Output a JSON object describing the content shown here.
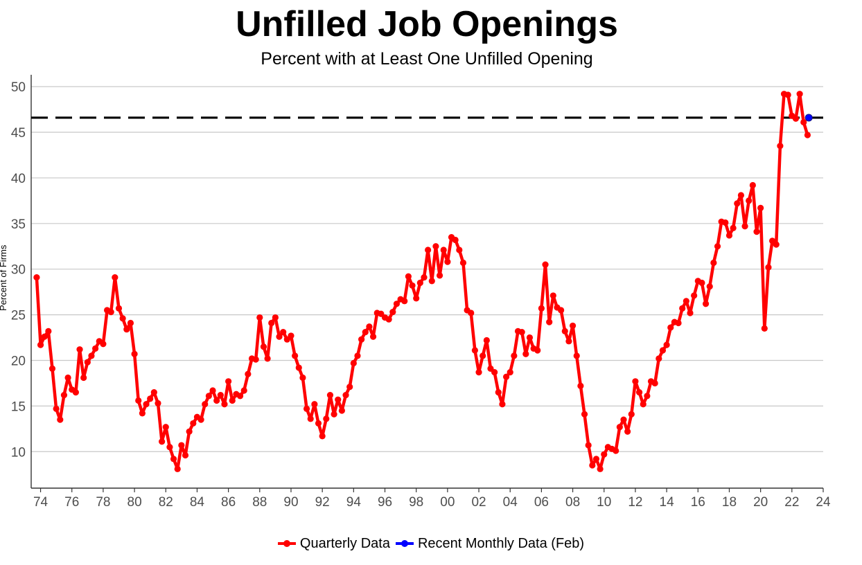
{
  "chart_data": {
    "type": "line",
    "title": "Unfilled Job Openings",
    "subtitle": "Percent with at Least One Unfilled Opening",
    "xlabel": "",
    "ylabel": "Percent of Firms",
    "xlim": [
      1973.4,
      2024.0
    ],
    "ylim": [
      6.0,
      51.3
    ],
    "x_tick_values": [
      1974,
      1976,
      1978,
      1980,
      1982,
      1984,
      1986,
      1988,
      1990,
      1992,
      1994,
      1996,
      1998,
      2000,
      2002,
      2004,
      2006,
      2008,
      2010,
      2012,
      2014,
      2016,
      2018,
      2020,
      2022,
      2024
    ],
    "x_tick_labels": [
      "74",
      "76",
      "78",
      "80",
      "82",
      "84",
      "86",
      "88",
      "90",
      "92",
      "94",
      "96",
      "98",
      "00",
      "02",
      "04",
      "06",
      "08",
      "10",
      "12",
      "14",
      "16",
      "18",
      "20",
      "22",
      "24"
    ],
    "y_ticks": [
      10,
      15,
      20,
      25,
      30,
      35,
      40,
      45,
      50
    ],
    "grid": "horizontal",
    "legend_position": "bottom",
    "reference_line": {
      "y": 46.6,
      "style": "dashed",
      "color": "#000000"
    },
    "series": [
      {
        "name": "Quarterly Data",
        "color": "#ff0000",
        "x": [
          1973.75,
          1974.0,
          1974.25,
          1974.5,
          1974.75,
          1975.0,
          1975.25,
          1975.5,
          1975.75,
          1976.0,
          1976.25,
          1976.5,
          1976.75,
          1977.0,
          1977.25,
          1977.5,
          1977.75,
          1978.0,
          1978.25,
          1978.5,
          1978.75,
          1979.0,
          1979.25,
          1979.5,
          1979.75,
          1980.0,
          1980.25,
          1980.5,
          1980.75,
          1981.0,
          1981.25,
          1981.5,
          1981.75,
          1982.0,
          1982.25,
          1982.5,
          1982.75,
          1983.0,
          1983.25,
          1983.5,
          1983.75,
          1984.0,
          1984.25,
          1984.5,
          1984.75,
          1985.0,
          1985.25,
          1985.5,
          1985.75,
          1986.0,
          1986.25,
          1986.5,
          1986.75,
          1987.0,
          1987.25,
          1987.5,
          1987.75,
          1988.0,
          1988.25,
          1988.5,
          1988.75,
          1989.0,
          1989.25,
          1989.5,
          1989.75,
          1990.0,
          1990.25,
          1990.5,
          1990.75,
          1991.0,
          1991.25,
          1991.5,
          1991.75,
          1992.0,
          1992.25,
          1992.5,
          1992.75,
          1993.0,
          1993.25,
          1993.5,
          1993.75,
          1994.0,
          1994.25,
          1994.5,
          1994.75,
          1995.0,
          1995.25,
          1995.5,
          1995.75,
          1996.0,
          1996.25,
          1996.5,
          1996.75,
          1997.0,
          1997.25,
          1997.5,
          1997.75,
          1998.0,
          1998.25,
          1998.5,
          1998.75,
          1999.0,
          1999.25,
          1999.5,
          1999.75,
          2000.0,
          2000.25,
          2000.5,
          2000.75,
          2001.0,
          2001.25,
          2001.5,
          2001.75,
          2002.0,
          2002.25,
          2002.5,
          2002.75,
          2003.0,
          2003.25,
          2003.5,
          2003.75,
          2004.0,
          2004.25,
          2004.5,
          2004.75,
          2005.0,
          2005.25,
          2005.5,
          2005.75,
          2006.0,
          2006.25,
          2006.5,
          2006.75,
          2007.0,
          2007.25,
          2007.5,
          2007.75,
          2008.0,
          2008.25,
          2008.5,
          2008.75,
          2009.0,
          2009.25,
          2009.5,
          2009.75,
          2010.0,
          2010.25,
          2010.5,
          2010.75,
          2011.0,
          2011.25,
          2011.5,
          2011.75,
          2012.0,
          2012.25,
          2012.5,
          2012.75,
          2013.0,
          2013.25,
          2013.5,
          2013.75,
          2014.0,
          2014.25,
          2014.5,
          2014.75,
          2015.0,
          2015.25,
          2015.5,
          2015.75,
          2016.0,
          2016.25,
          2016.5,
          2016.75,
          2017.0,
          2017.25,
          2017.5,
          2017.75,
          2018.0,
          2018.25,
          2018.5,
          2018.75,
          2019.0,
          2019.25,
          2019.5,
          2019.75,
          2020.0,
          2020.25,
          2020.5,
          2020.75,
          2021.0,
          2021.25,
          2021.5,
          2021.75,
          2022.0,
          2022.25,
          2022.5,
          2022.75,
          2023.0
        ],
        "values": [
          29.1,
          21.7,
          22.6,
          23.2,
          19.1,
          14.7,
          13.5,
          16.2,
          18.1,
          16.8,
          16.5,
          21.2,
          18.1,
          19.8,
          20.5,
          21.3,
          22.1,
          21.8,
          25.5,
          25.3,
          29.1,
          25.7,
          24.6,
          23.4,
          24.1,
          20.7,
          15.6,
          14.2,
          15.2,
          15.8,
          16.5,
          15.3,
          11.1,
          12.7,
          10.5,
          9.2,
          8.1,
          10.7,
          9.6,
          12.2,
          13.1,
          13.8,
          13.5,
          15.2,
          16.1,
          16.7,
          15.6,
          16.2,
          15.2,
          17.7,
          15.6,
          16.3,
          16.1,
          16.7,
          18.5,
          20.2,
          20.1,
          24.7,
          21.5,
          20.2,
          24.1,
          24.7,
          22.6,
          23.1,
          22.3,
          22.7,
          20.5,
          19.2,
          18.1,
          14.7,
          13.6,
          15.2,
          13.1,
          11.7,
          13.6,
          16.2,
          14.1,
          15.7,
          14.5,
          16.2,
          17.1,
          19.7,
          20.5,
          22.3,
          23.1,
          23.7,
          22.6,
          25.2,
          25.1,
          24.7,
          24.5,
          25.3,
          26.2,
          26.7,
          26.5,
          29.2,
          28.2,
          26.8,
          28.5,
          29.1,
          32.1,
          28.7,
          32.5,
          29.3,
          32.1,
          30.8,
          33.5,
          33.2,
          32.1,
          30.7,
          25.5,
          25.2,
          21.1,
          18.7,
          20.5,
          22.2,
          19.1,
          18.7,
          16.5,
          15.2,
          18.2,
          18.7,
          20.5,
          23.2,
          23.1,
          20.7,
          22.5,
          21.3,
          21.1,
          25.7,
          30.5,
          24.2,
          27.1,
          25.8,
          25.5,
          23.2,
          22.1,
          23.8,
          20.5,
          17.2,
          14.1,
          10.7,
          8.5,
          9.2,
          8.1,
          9.7,
          10.5,
          10.3,
          10.1,
          12.7,
          13.5,
          12.2,
          14.1,
          17.7,
          16.5,
          15.2,
          16.1,
          17.7,
          17.5,
          20.2,
          21.1,
          21.7,
          23.6,
          24.2,
          24.1,
          25.7,
          26.5,
          25.2,
          27.1,
          28.7,
          28.5,
          26.2,
          28.1,
          30.7,
          32.5,
          35.2,
          35.1,
          33.7,
          34.5,
          37.2,
          38.1,
          34.7,
          37.5,
          39.2,
          34.1,
          36.7,
          23.5,
          30.2,
          33.1,
          32.7,
          43.5,
          49.2,
          49.1,
          46.8,
          46.5,
          49.2,
          46.1,
          44.7
        ]
      },
      {
        "name": "Recent Monthly Data (Feb)",
        "color": "#0000ff",
        "x": [
          2023.08
        ],
        "values": [
          46.6
        ]
      }
    ]
  }
}
